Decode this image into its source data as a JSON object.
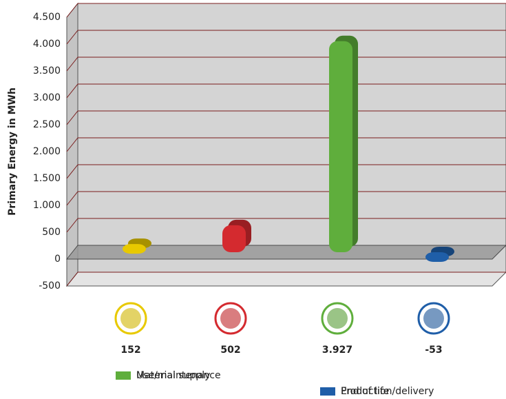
{
  "chart_data": {
    "type": "bar3d",
    "y_label": "Primary Energy in MWh",
    "categories": [
      "Material supply",
      "Production/delivery",
      "Use/maintenance",
      "End of life"
    ],
    "values": [
      152,
      502,
      3927,
      -53
    ],
    "value_labels": [
      "152",
      "502",
      "3.927",
      "-53"
    ],
    "colors": [
      "#e8c900",
      "#d42a2f",
      "#5fae3c",
      "#1f5ea8"
    ],
    "ylim": [
      -500,
      4500
    ],
    "yticks": [
      -500,
      0,
      500,
      {
        "value": 1000,
        "label": "1.000"
      },
      {
        "value": 1500,
        "label": "1.500"
      },
      {
        "value": 2000,
        "label": "2.000"
      },
      {
        "value": 2500,
        "label": "2.500"
      },
      {
        "value": 3000,
        "label": "3.000"
      },
      {
        "value": 3500,
        "label": "3.500"
      },
      {
        "value": 4000,
        "label": "4.000"
      },
      {
        "value": 4500,
        "label": "4.500"
      }
    ],
    "grid": true
  }
}
